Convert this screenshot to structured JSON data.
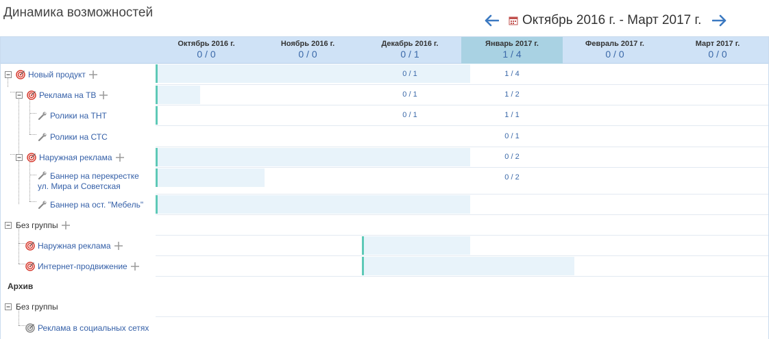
{
  "page": {
    "title": "Динамика возможностей",
    "period": "Октябрь 2016 г. - Март 2017 г."
  },
  "months": [
    {
      "name": "Октябрь 2016 г.",
      "value": "0 / 0"
    },
    {
      "name": "Ноябрь 2016 г.",
      "value": "0 / 0"
    },
    {
      "name": "Декабрь 2016 г.",
      "value": "0 / 1"
    },
    {
      "name": "Январь 2017 г.",
      "value": "1 / 4"
    },
    {
      "name": "Февраль 2017 г.",
      "value": "0 / 0"
    },
    {
      "name": "Март 2017 г.",
      "value": "0 / 0"
    }
  ],
  "rows": [
    {
      "label": "Новый продукт",
      "counts": {
        "dec": "0 / 1",
        "jan": "1 / 4"
      }
    },
    {
      "label": "Реклама на ТВ",
      "counts": {
        "dec": "0 / 1",
        "jan": "1 / 2"
      }
    },
    {
      "label": "Ролики на ТНТ",
      "counts": {
        "dec": "0 / 1",
        "jan": "1 / 1"
      }
    },
    {
      "label": "Ролики на СТС",
      "counts": {
        "jan": "0 / 1"
      }
    },
    {
      "label": "Наружная реклама",
      "counts": {
        "jan": "0 / 2"
      }
    },
    {
      "label_line1": "Баннер на перекрестке",
      "label_line2": "ул. Мира и Советская",
      "counts": {
        "jan": "0 / 2"
      }
    },
    {
      "label": "Баннер на ост. \"Мебель\""
    },
    {
      "label": "Без группы"
    },
    {
      "label": "Наружная реклама"
    },
    {
      "label": "Интернет-продвижение"
    },
    {
      "label": "Архив"
    },
    {
      "label": "Без группы"
    },
    {
      "label": "Реклама в социальных сетях"
    }
  ]
}
